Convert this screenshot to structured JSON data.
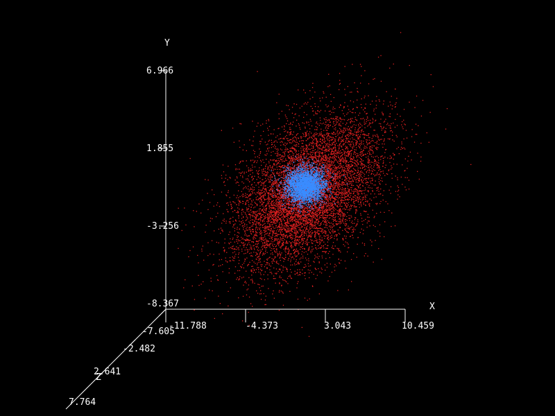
{
  "colors": {
    "background": "#000000",
    "axes": "#ffffff",
    "outer_cloud": "#e02020",
    "inner_cloud": "#3a8cff"
  },
  "chart_data": {
    "type": "scatter",
    "projection": "3d",
    "xlabel": "X",
    "ylabel": "Y",
    "zlabel": "Z",
    "x_ticks": [
      "-11.788",
      "-4.373",
      "3.043",
      "10.459"
    ],
    "y_ticks": [
      "6.966",
      "1.855",
      "-3.256",
      "-8.367"
    ],
    "z_ticks": [
      "-7.605",
      "-2.482",
      "2.641",
      "7.764"
    ],
    "xlim": [
      -11.788,
      10.459
    ],
    "ylim": [
      -8.367,
      6.966
    ],
    "zlim": [
      -7.605,
      7.764
    ],
    "grid": false,
    "series": [
      {
        "color": "#e02020",
        "point_count": 8000,
        "distribution": "gaussian",
        "mean": [
          2.2,
          -0.2,
          0.0
        ],
        "std": [
          3.5,
          2.5,
          2.0
        ],
        "correlation_xy": 0.45
      },
      {
        "color": "#3a8cff",
        "point_count": 3000,
        "distribution": "gaussian",
        "mean": [
          2.0,
          0.2,
          0.0
        ],
        "std": [
          0.9,
          0.55,
          0.6
        ],
        "correlation_xy": 0.05
      }
    ]
  }
}
